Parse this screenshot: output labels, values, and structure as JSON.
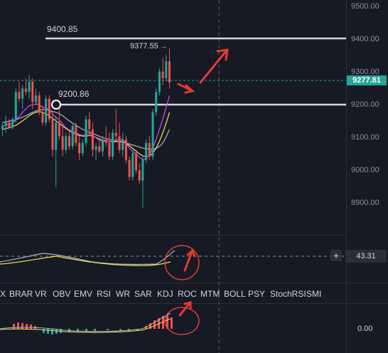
{
  "colors": {
    "background": "#161a25",
    "up": "#26a69a",
    "down": "#ef5350",
    "annotation": "#e53935",
    "level_line": "#d8d8d8",
    "ma_fast": "#e040fb",
    "ma_mid": "#f2e25b",
    "ma_slow": "#b0b4c4",
    "grid": "#2a2e39"
  },
  "price_axis": {
    "labels": [
      "9500.00",
      "9400.00",
      "9300.00",
      "9200.00",
      "9100.00",
      "9000.00",
      "8900.00"
    ]
  },
  "current_price": "9277.81",
  "annotations": {
    "high_level": "9400.85",
    "peak_price": "9377.55",
    "support_level": "9200.86"
  },
  "indicator_tabs": [
    "X",
    "BRAR",
    "VR",
    "OBV",
    "EMV",
    "RSI",
    "WR",
    "SAR",
    "KDJ",
    "ROC",
    "MTM",
    "BOLL",
    "PSY",
    "StochRSI",
    "SMI"
  ],
  "sub_panel_1": {
    "add_symbol": "+",
    "value": "43.31"
  },
  "sub_panel_2": {
    "value": "0.00"
  },
  "chart_data": {
    "type": "candlestick",
    "y_range": [
      8830,
      9520
    ],
    "candles": [
      [
        9140,
        9160,
        9120,
        9150
      ],
      [
        9150,
        9180,
        9130,
        9160
      ],
      [
        9160,
        9170,
        9140,
        9145
      ],
      [
        9145,
        9175,
        9140,
        9170
      ],
      [
        9170,
        9260,
        9160,
        9250
      ],
      [
        9250,
        9280,
        9220,
        9230
      ],
      [
        9230,
        9270,
        9200,
        9260
      ],
      [
        9260,
        9290,
        9240,
        9250
      ],
      [
        9250,
        9300,
        9230,
        9280
      ],
      [
        9280,
        9290,
        9200,
        9220
      ],
      [
        9220,
        9260,
        9210,
        9240
      ],
      [
        9240,
        9250,
        9180,
        9190
      ],
      [
        9190,
        9210,
        9150,
        9160
      ],
      [
        9160,
        9240,
        9150,
        9230
      ],
      [
        9230,
        9240,
        9160,
        9170
      ],
      [
        9170,
        9190,
        9060,
        9080
      ],
      [
        9080,
        9180,
        8970,
        9160
      ],
      [
        9160,
        9200,
        9110,
        9120
      ],
      [
        9120,
        9150,
        9060,
        9080
      ],
      [
        9080,
        9130,
        9070,
        9120
      ],
      [
        9120,
        9140,
        9080,
        9090
      ],
      [
        9090,
        9160,
        9080,
        9150
      ],
      [
        9150,
        9160,
        9090,
        9100
      ],
      [
        9100,
        9120,
        9050,
        9070
      ],
      [
        9070,
        9110,
        9060,
        9100
      ],
      [
        9100,
        9180,
        9090,
        9170
      ],
      [
        9170,
        9190,
        9120,
        9140
      ],
      [
        9140,
        9160,
        9060,
        9080
      ],
      [
        9080,
        9100,
        9050,
        9090
      ],
      [
        9090,
        9110,
        9070,
        9075
      ],
      [
        9075,
        9120,
        9060,
        9110
      ],
      [
        9110,
        9150,
        9090,
        9100
      ],
      [
        9100,
        9130,
        9050,
        9060
      ],
      [
        9060,
        9140,
        9050,
        9130
      ],
      [
        9130,
        9200,
        9110,
        9120
      ],
      [
        9120,
        9160,
        9070,
        9080
      ],
      [
        9080,
        9130,
        9060,
        9110
      ],
      [
        9110,
        9120,
        9040,
        9050
      ],
      [
        9050,
        9060,
        8990,
        9000
      ],
      [
        9000,
        9080,
        8990,
        9070
      ],
      [
        9070,
        9080,
        9010,
        9020
      ],
      [
        9020,
        9040,
        8980,
        8990
      ],
      [
        8990,
        9060,
        8910,
        9050
      ],
      [
        9050,
        9110,
        9040,
        9100
      ],
      [
        9100,
        9120,
        9050,
        9060
      ],
      [
        9060,
        9200,
        9050,
        9190
      ],
      [
        9190,
        9260,
        9180,
        9250
      ],
      [
        9250,
        9320,
        9240,
        9310
      ],
      [
        9310,
        9350,
        9270,
        9290
      ],
      [
        9290,
        9360,
        9280,
        9340
      ],
      [
        9340,
        9377.55,
        9260,
        9277.81
      ]
    ],
    "ma_fast": [
      9150,
      9152,
      9155,
      9158,
      9168,
      9178,
      9190,
      9200,
      9210,
      9212,
      9215,
      9212,
      9205,
      9203,
      9198,
      9185,
      9175,
      9168,
      9155,
      9145,
      9138,
      9135,
      9130,
      9125,
      9122,
      9125,
      9128,
      9123,
      9115,
      9108,
      9105,
      9106,
      9104,
      9105,
      9110,
      9112,
      9110,
      9100,
      9085,
      9075,
      9068,
      9058,
      9050,
      9055,
      9065,
      9085,
      9110,
      9140,
      9170,
      9205,
      9240
    ],
    "ma_mid": [
      9140,
      9142,
      9145,
      9148,
      9152,
      9158,
      9165,
      9172,
      9180,
      9186,
      9190,
      9192,
      9190,
      9185,
      9180,
      9172,
      9165,
      9158,
      9150,
      9142,
      9136,
      9130,
      9126,
      9122,
      9120,
      9120,
      9122,
      9120,
      9116,
      9112,
      9108,
      9106,
      9104,
      9103,
      9104,
      9105,
      9104,
      9100,
      9092,
      9084,
      9076,
      9068,
      9062,
      9060,
      9062,
      9070,
      9085,
      9105,
      9130,
      9158,
      9190
    ],
    "ma_slow": [
      9160,
      9162,
      9164,
      9166,
      9168,
      9172,
      9176,
      9180,
      9185,
      9190,
      9194,
      9197,
      9198,
      9198,
      9196,
      9193,
      9190,
      9186,
      9180,
      9172,
      9165,
      9158,
      9152,
      9146,
      9140,
      9136,
      9132,
      9128,
      9124,
      9120,
      9116,
      9113,
      9110,
      9108,
      9106,
      9104,
      9102,
      9100,
      9097,
      9094,
      9091,
      9088,
      9085,
      9083,
      9082,
      9082,
      9084,
      9090,
      9100,
      9118,
      9140
    ]
  }
}
